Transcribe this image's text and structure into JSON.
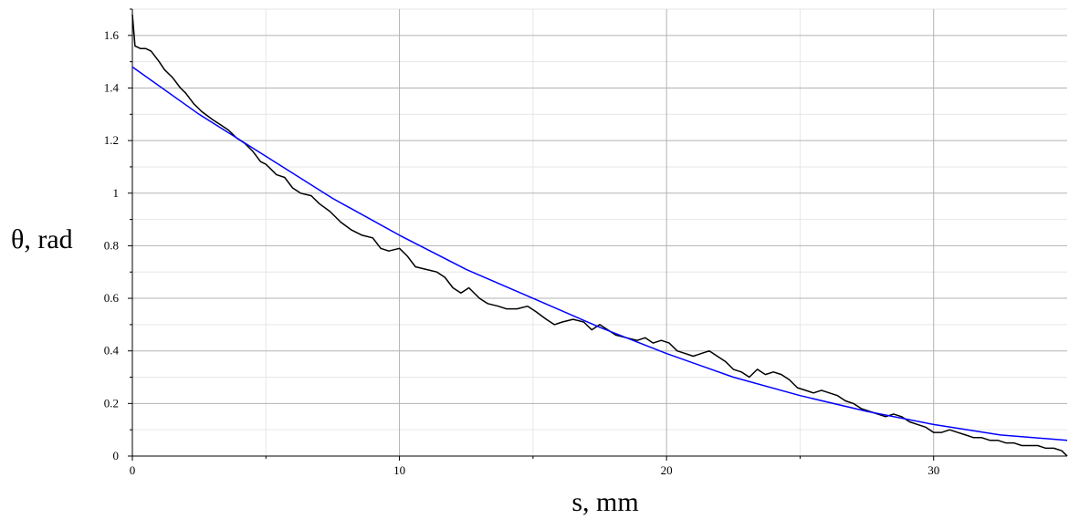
{
  "chart_data": {
    "type": "line",
    "xlabel": "s, mm",
    "ylabel": "θ, rad",
    "xlim": [
      0,
      35
    ],
    "ylim": [
      0,
      1.7
    ],
    "x_ticks": [
      0,
      10,
      20,
      30
    ],
    "x_tick_labels": [
      "0",
      "10",
      "20",
      "30"
    ],
    "y_ticks": [
      0,
      0.2,
      0.4,
      0.6,
      0.8,
      1.0,
      1.2,
      1.4,
      1.6
    ],
    "y_tick_labels": [
      "0",
      "0.2",
      "0.4",
      "0.6",
      "0.8",
      "1",
      "1.2",
      "1.4",
      "1.6"
    ],
    "grid": true,
    "series": [
      {
        "color": "#000000",
        "style": "measured",
        "x": [
          0,
          0.1,
          0.3,
          0.5,
          0.7,
          1.0,
          1.2,
          1.5,
          1.8,
          2.0,
          2.3,
          2.6,
          3.0,
          3.3,
          3.6,
          3.9,
          4.2,
          4.5,
          4.8,
          5.0,
          5.2,
          5.4,
          5.7,
          6.0,
          6.3,
          6.7,
          7.0,
          7.4,
          7.8,
          8.2,
          8.6,
          9.0,
          9.3,
          9.6,
          10.0,
          10.3,
          10.6,
          11.0,
          11.4,
          11.7,
          12.0,
          12.3,
          12.6,
          13.0,
          13.3,
          13.7,
          14.0,
          14.4,
          14.8,
          15.1,
          15.5,
          15.8,
          16.1,
          16.5,
          16.9,
          17.2,
          17.5,
          17.8,
          18.1,
          18.5,
          18.9,
          19.2,
          19.5,
          19.8,
          20.1,
          20.4,
          20.7,
          21.0,
          21.3,
          21.6,
          21.9,
          22.2,
          22.5,
          22.8,
          23.1,
          23.4,
          23.7,
          24.0,
          24.3,
          24.6,
          24.9,
          25.2,
          25.5,
          25.8,
          26.1,
          26.4,
          26.7,
          27.0,
          27.3,
          27.6,
          27.9,
          28.2,
          28.5,
          28.8,
          29.1,
          29.4,
          29.7,
          30.0,
          30.3,
          30.6,
          30.9,
          31.2,
          31.5,
          31.8,
          32.1,
          32.4,
          32.7,
          33.0,
          33.3,
          33.6,
          33.9,
          34.2,
          34.5,
          34.8,
          35.0
        ],
        "y": [
          1.68,
          1.56,
          1.55,
          1.55,
          1.54,
          1.5,
          1.47,
          1.44,
          1.4,
          1.38,
          1.34,
          1.31,
          1.28,
          1.26,
          1.24,
          1.21,
          1.19,
          1.16,
          1.12,
          1.11,
          1.09,
          1.07,
          1.06,
          1.02,
          1.0,
          0.99,
          0.96,
          0.93,
          0.89,
          0.86,
          0.84,
          0.83,
          0.79,
          0.78,
          0.79,
          0.76,
          0.72,
          0.71,
          0.7,
          0.68,
          0.64,
          0.62,
          0.64,
          0.6,
          0.58,
          0.57,
          0.56,
          0.56,
          0.57,
          0.55,
          0.52,
          0.5,
          0.51,
          0.52,
          0.51,
          0.48,
          0.5,
          0.48,
          0.46,
          0.45,
          0.44,
          0.45,
          0.43,
          0.44,
          0.43,
          0.4,
          0.39,
          0.38,
          0.39,
          0.4,
          0.38,
          0.36,
          0.33,
          0.32,
          0.3,
          0.33,
          0.31,
          0.32,
          0.31,
          0.29,
          0.26,
          0.25,
          0.24,
          0.25,
          0.24,
          0.23,
          0.21,
          0.2,
          0.18,
          0.17,
          0.16,
          0.15,
          0.16,
          0.15,
          0.13,
          0.12,
          0.11,
          0.09,
          0.09,
          0.1,
          0.09,
          0.08,
          0.07,
          0.07,
          0.06,
          0.06,
          0.05,
          0.05,
          0.04,
          0.04,
          0.04,
          0.03,
          0.03,
          0.02,
          0.0
        ]
      },
      {
        "color": "#0000ff",
        "style": "fit",
        "x": [
          0,
          2.5,
          5,
          7.5,
          10,
          12.5,
          15,
          17.5,
          20,
          22.5,
          25,
          27.5,
          30,
          32.5,
          35
        ],
        "y": [
          1.48,
          1.3,
          1.14,
          0.98,
          0.84,
          0.71,
          0.6,
          0.49,
          0.39,
          0.3,
          0.23,
          0.17,
          0.12,
          0.08,
          0.06
        ]
      }
    ]
  }
}
